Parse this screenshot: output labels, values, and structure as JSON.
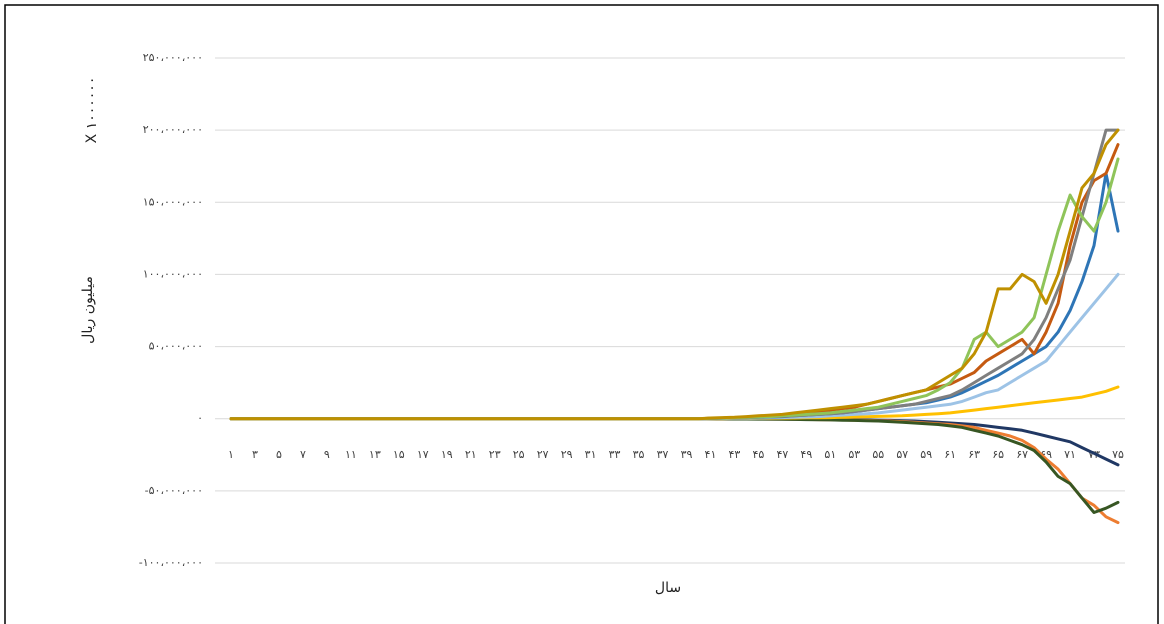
{
  "chart_data": {
    "type": "line",
    "y_label": "میلیون ریال",
    "y_unit_label": "X ۱۰۰۰۰۰۰",
    "x_label": "سال",
    "categories": [
      "۱",
      null,
      "۳",
      null,
      "۵",
      null,
      "۷",
      null,
      "۹",
      null,
      "۱۱",
      null,
      "۱۳",
      null,
      "۱۵",
      null,
      "۱۷",
      null,
      "۱۹",
      null,
      "۲۱",
      null,
      "۲۳",
      null,
      "۲۵",
      null,
      "۲۷",
      null,
      "۲۹",
      null,
      "۳۱",
      null,
      "۳۳",
      null,
      "۳۵",
      null,
      "۳۷",
      null,
      "۳۹",
      null,
      "۴۱",
      null,
      "۴۳",
      null,
      "۴۵",
      null,
      "۴۷",
      null,
      "۴۹",
      null,
      "۵۱",
      null,
      "۵۳",
      null,
      "۵۵",
      null,
      "۵۷",
      null,
      "۵۹",
      null,
      "۶۱",
      null,
      "۶۳",
      null,
      "۶۵",
      null,
      "۶۷",
      null,
      "۶۹",
      null,
      "۷۱",
      null,
      "۷۳",
      null,
      "۷۵"
    ],
    "ylim": [
      -100000000,
      250000000
    ],
    "yticks": [
      {
        "value": -100000000,
        "label": "-۱۰۰،۰۰۰،۰۰۰"
      },
      {
        "value": -50000000,
        "label": "-۵۰،۰۰۰،۰۰۰"
      },
      {
        "value": 0,
        "label": "۰"
      },
      {
        "value": 50000000,
        "label": "۵۰،۰۰۰،۰۰۰"
      },
      {
        "value": 100000000,
        "label": "۱۰۰،۰۰۰،۰۰۰"
      },
      {
        "value": 150000000,
        "label": "۱۵۰،۰۰۰،۰۰۰"
      },
      {
        "value": 200000000,
        "label": "۲۰۰،۰۰۰،۰۰۰"
      },
      {
        "value": 250000000,
        "label": "۲۵۰،۰۰۰،۰۰۰"
      }
    ],
    "grid": true,
    "series": [
      {
        "color": "#203864",
        "values": [
          0,
          0,
          0,
          0,
          0,
          0,
          0,
          0,
          0,
          0,
          0,
          0,
          0,
          0,
          0,
          0,
          0,
          0,
          0,
          0,
          0,
          0,
          0,
          0,
          0,
          0,
          0,
          0,
          0,
          0,
          0,
          0,
          0,
          0,
          0,
          0,
          0,
          0,
          0,
          0,
          -100000,
          -100000,
          -100000,
          -100000,
          -200000,
          -200000,
          -200000,
          -300000,
          -300000,
          -400000,
          -500000,
          -600000,
          -700000,
          -800000,
          -1000000,
          -1200000,
          -1400000,
          -1600000,
          -2000000,
          -2500000,
          -3000000,
          -3500000,
          -4000000,
          -5000000,
          -6000000,
          -7000000,
          -8000000,
          -10000000,
          -12000000,
          -14000000,
          -16000000,
          -20000000,
          -24000000,
          -28000000,
          -32000000
        ]
      },
      {
        "color": "#ed7d31",
        "values": [
          0,
          0,
          0,
          0,
          0,
          0,
          0,
          0,
          0,
          0,
          0,
          0,
          0,
          0,
          0,
          0,
          0,
          0,
          0,
          0,
          0,
          0,
          0,
          0,
          0,
          0,
          0,
          0,
          0,
          0,
          0,
          0,
          0,
          0,
          0,
          0,
          0,
          0,
          0,
          0,
          -100000,
          -100000,
          -100000,
          -200000,
          -200000,
          -300000,
          -300000,
          -400000,
          -500000,
          -600000,
          -700000,
          -800000,
          -1000000,
          -1200000,
          -1400000,
          -1600000,
          -2000000,
          -2500000,
          -3000000,
          -3500000,
          -4000000,
          -5000000,
          -6000000,
          -8000000,
          -10000000,
          -12000000,
          -15000000,
          -20000000,
          -28000000,
          -35000000,
          -45000000,
          -55000000,
          -60000000,
          -68000000,
          -72000000
        ]
      },
      {
        "color": "#375623",
        "values": [
          0,
          0,
          0,
          0,
          0,
          0,
          0,
          0,
          0,
          0,
          0,
          0,
          0,
          0,
          0,
          0,
          0,
          0,
          0,
          0,
          0,
          0,
          0,
          0,
          0,
          0,
          0,
          0,
          0,
          0,
          0,
          0,
          0,
          0,
          0,
          0,
          0,
          0,
          0,
          0,
          -100000,
          -100000,
          -200000,
          -200000,
          -300000,
          -300000,
          -400000,
          -500000,
          -600000,
          -700000,
          -800000,
          -1000000,
          -1200000,
          -1400000,
          -1600000,
          -2000000,
          -2500000,
          -3000000,
          -3500000,
          -4000000,
          -5000000,
          -6000000,
          -8000000,
          -10000000,
          -12000000,
          -15000000,
          -18000000,
          -22000000,
          -30000000,
          -40000000,
          -45000000,
          -55000000,
          -65000000,
          -62000000,
          -58000000
        ]
      },
      {
        "color": "#ffc000",
        "values": [
          0,
          0,
          0,
          0,
          0,
          0,
          0,
          0,
          0,
          0,
          0,
          0,
          0,
          0,
          0,
          0,
          0,
          0,
          0,
          0,
          0,
          0,
          0,
          0,
          0,
          0,
          0,
          0,
          0,
          0,
          0,
          0,
          0,
          0,
          0,
          0,
          0,
          0,
          0,
          0,
          100000,
          100000,
          200000,
          200000,
          300000,
          300000,
          400000,
          500000,
          600000,
          700000,
          800000,
          1000000,
          1200000,
          1400000,
          1600000,
          1800000,
          2000000,
          2500000,
          3000000,
          3500000,
          4000000,
          5000000,
          6000000,
          7000000,
          8000000,
          9000000,
          10000000,
          11000000,
          12000000,
          13000000,
          14000000,
          15000000,
          17000000,
          19000000,
          22000000
        ]
      },
      {
        "color": "#9dc3e6",
        "values": [
          0,
          0,
          0,
          0,
          0,
          0,
          0,
          0,
          0,
          0,
          0,
          0,
          0,
          0,
          0,
          0,
          0,
          0,
          0,
          0,
          0,
          0,
          0,
          0,
          0,
          0,
          0,
          0,
          0,
          0,
          0,
          0,
          0,
          0,
          0,
          0,
          0,
          0,
          0,
          0,
          100000,
          200000,
          300000,
          400000,
          500000,
          600000,
          800000,
          1000000,
          1200000,
          1500000,
          2000000,
          2500000,
          3000000,
          3500000,
          4000000,
          5000000,
          6000000,
          7000000,
          8000000,
          9000000,
          10000000,
          12000000,
          15000000,
          18000000,
          20000000,
          25000000,
          30000000,
          35000000,
          40000000,
          50000000,
          60000000,
          70000000,
          80000000,
          90000000,
          100000000
        ]
      },
      {
        "color": "#2e75b6",
        "values": [
          0,
          0,
          0,
          0,
          0,
          0,
          0,
          0,
          0,
          0,
          0,
          0,
          0,
          0,
          0,
          0,
          0,
          0,
          0,
          0,
          0,
          0,
          0,
          0,
          0,
          0,
          0,
          0,
          0,
          0,
          0,
          0,
          0,
          0,
          0,
          0,
          0,
          0,
          0,
          0,
          200000,
          400000,
          600000,
          800000,
          1000000,
          1200000,
          1500000,
          2000000,
          2500000,
          3000000,
          3500000,
          4000000,
          5000000,
          6000000,
          7000000,
          8000000,
          9000000,
          10000000,
          11000000,
          13000000,
          15000000,
          18000000,
          22000000,
          26000000,
          30000000,
          35000000,
          40000000,
          45000000,
          50000000,
          60000000,
          75000000,
          95000000,
          120000000,
          170000000,
          130000000
        ]
      },
      {
        "color": "#c55a11",
        "values": [
          0,
          0,
          0,
          0,
          0,
          0,
          0,
          0,
          0,
          0,
          0,
          0,
          0,
          0,
          0,
          0,
          0,
          0,
          0,
          0,
          0,
          0,
          0,
          0,
          0,
          0,
          0,
          0,
          0,
          0,
          0,
          0,
          0,
          0,
          0,
          0,
          0,
          0,
          0,
          0,
          300000,
          500000,
          800000,
          1200000,
          1600000,
          2000000,
          2500000,
          3000000,
          4000000,
          5000000,
          6000000,
          7000000,
          8000000,
          10000000,
          12000000,
          14000000,
          16000000,
          18000000,
          20000000,
          22000000,
          24000000,
          28000000,
          32000000,
          40000000,
          45000000,
          50000000,
          55000000,
          45000000,
          60000000,
          80000000,
          120000000,
          150000000,
          165000000,
          170000000,
          190000000
        ]
      },
      {
        "color": "#7f7f7f",
        "values": [
          0,
          0,
          0,
          0,
          0,
          0,
          0,
          0,
          0,
          0,
          0,
          0,
          0,
          0,
          0,
          0,
          0,
          0,
          0,
          0,
          0,
          0,
          0,
          0,
          0,
          0,
          0,
          0,
          0,
          0,
          0,
          0,
          0,
          0,
          0,
          0,
          0,
          0,
          0,
          0,
          200000,
          400000,
          600000,
          800000,
          1000000,
          1300000,
          1600000,
          2000000,
          2500000,
          3000000,
          3500000,
          4000000,
          5000000,
          6000000,
          7000000,
          8000000,
          9000000,
          10000000,
          12000000,
          14000000,
          16000000,
          20000000,
          25000000,
          30000000,
          35000000,
          40000000,
          45000000,
          55000000,
          70000000,
          90000000,
          110000000,
          140000000,
          170000000,
          200000000,
          200000000
        ]
      },
      {
        "color": "#8fc45a",
        "values": [
          0,
          0,
          0,
          0,
          0,
          0,
          0,
          0,
          0,
          0,
          0,
          0,
          0,
          0,
          0,
          0,
          0,
          0,
          0,
          0,
          0,
          0,
          0,
          0,
          0,
          0,
          0,
          0,
          0,
          0,
          0,
          0,
          0,
          0,
          0,
          0,
          0,
          0,
          0,
          0,
          300000,
          500000,
          800000,
          1000000,
          1200000,
          1500000,
          2000000,
          2500000,
          3000000,
          3500000,
          4000000,
          5000000,
          6000000,
          7000000,
          8000000,
          10000000,
          12000000,
          14000000,
          16000000,
          20000000,
          25000000,
          35000000,
          55000000,
          60000000,
          50000000,
          55000000,
          60000000,
          70000000,
          100000000,
          130000000,
          155000000,
          140000000,
          130000000,
          150000000,
          180000000
        ]
      },
      {
        "color": "#bf9000",
        "values": [
          0,
          0,
          0,
          0,
          0,
          0,
          0,
          0,
          0,
          0,
          0,
          0,
          0,
          0,
          0,
          0,
          0,
          0,
          0,
          0,
          0,
          0,
          0,
          0,
          0,
          0,
          0,
          0,
          0,
          0,
          0,
          0,
          0,
          0,
          0,
          0,
          0,
          0,
          0,
          0,
          500000,
          800000,
          1000000,
          1500000,
          2000000,
          2500000,
          3000000,
          4000000,
          5000000,
          6000000,
          7000000,
          8000000,
          9000000,
          10000000,
          12000000,
          14000000,
          16000000,
          18000000,
          20000000,
          25000000,
          30000000,
          35000000,
          45000000,
          60000000,
          90000000,
          90000000,
          100000000,
          95000000,
          80000000,
          100000000,
          130000000,
          160000000,
          170000000,
          190000000,
          200000000
        ]
      }
    ]
  }
}
